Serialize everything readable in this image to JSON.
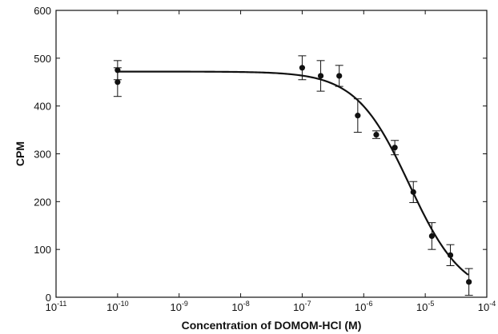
{
  "chart_data": {
    "type": "scatter",
    "title": "",
    "xlabel": "Concentration of DOMOM-HCl (M)",
    "ylabel": "CPM",
    "x_scale": "log",
    "xlim": [
      1e-11,
      0.0001
    ],
    "ylim": [
      0,
      600
    ],
    "x_tick_labels": [
      "10-11",
      "10-10",
      "10-9",
      "10-8",
      "10-7",
      "10-6",
      "10-5",
      "10-4"
    ],
    "x_tick_base": "10",
    "x_tick_exponents": [
      "-11",
      "-10",
      "-9",
      "-8",
      "-7",
      "-6",
      "-5",
      "-4"
    ],
    "y_ticks": [
      0,
      100,
      200,
      300,
      400,
      500,
      600
    ],
    "y_tick_labels": [
      "0",
      "100",
      "200",
      "300",
      "400",
      "500",
      "600"
    ],
    "grid": false,
    "legend": "none",
    "series": [
      {
        "type": "scatter-errorbar",
        "points": [
          {
            "x": 1e-10,
            "y": 475,
            "err": 20
          },
          {
            "x": 1e-10,
            "y": 450,
            "err": 30
          },
          {
            "x": 1e-07,
            "y": 480,
            "err": 25
          },
          {
            "x": 2e-07,
            "y": 463,
            "err": 32
          },
          {
            "x": 4e-07,
            "y": 463,
            "err": 22
          },
          {
            "x": 8e-07,
            "y": 380,
            "err": 35
          },
          {
            "x": 1.6e-06,
            "y": 340,
            "err": 8
          },
          {
            "x": 3.2e-06,
            "y": 313,
            "err": 15
          },
          {
            "x": 6.4e-06,
            "y": 220,
            "err": 22
          },
          {
            "x": 1.28e-05,
            "y": 128,
            "err": 28
          },
          {
            "x": 2.56e-05,
            "y": 88,
            "err": 22
          },
          {
            "x": 5.12e-05,
            "y": 32,
            "err": 28
          }
        ]
      },
      {
        "type": "fit-curve",
        "top": 472,
        "bottom": 0,
        "ic50": 5.5e-06,
        "hill": 1.0,
        "x_range": [
          1e-10,
          5e-05
        ]
      }
    ],
    "colors": {
      "marks": "#111111",
      "axes": "#111111"
    }
  }
}
